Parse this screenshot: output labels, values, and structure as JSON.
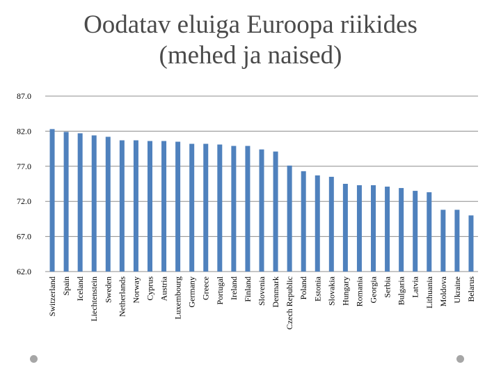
{
  "title": {
    "line1": "Oodatav eluiga Euroopa riikides",
    "line2": "(mehed ja naised)"
  },
  "chart_data": {
    "type": "bar",
    "title": "Oodatav eluiga Euroopa riikides (mehed ja naised)",
    "xlabel": "",
    "ylabel": "",
    "ylim": [
      62,
      87
    ],
    "yticks": [
      "62.0",
      "67.0",
      "72.0",
      "77.0",
      "82.0",
      "87.0"
    ],
    "grid": true,
    "bar_color": "#4f81bd",
    "categories": [
      "Switzerland",
      "Spain",
      "Iceland",
      "Liechtenstein",
      "Sweden",
      "Netherlands",
      "Norway",
      "Cyprus",
      "Austria",
      "Luxembourg",
      "Germany",
      "Greece",
      "Portugal",
      "Ireland",
      "Finland",
      "Slovenia",
      "Denmark",
      "Czech Republic",
      "Poland",
      "Estonia",
      "Slovakia",
      "Hungary",
      "Romania",
      "Georgia",
      "Serbia",
      "Bulgaria",
      "Latvia",
      "Lithuania",
      "Moldova",
      "Ukraine",
      "Belarus"
    ],
    "values": [
      82.3,
      81.9,
      81.7,
      81.4,
      81.2,
      80.7,
      80.7,
      80.6,
      80.6,
      80.5,
      80.2,
      80.2,
      80.1,
      79.9,
      79.9,
      79.4,
      79.1,
      77.1,
      76.3,
      75.7,
      75.5,
      74.5,
      74.3,
      74.3,
      74.1,
      73.9,
      73.5,
      73.3,
      70.8,
      70.8,
      70.0
    ]
  }
}
